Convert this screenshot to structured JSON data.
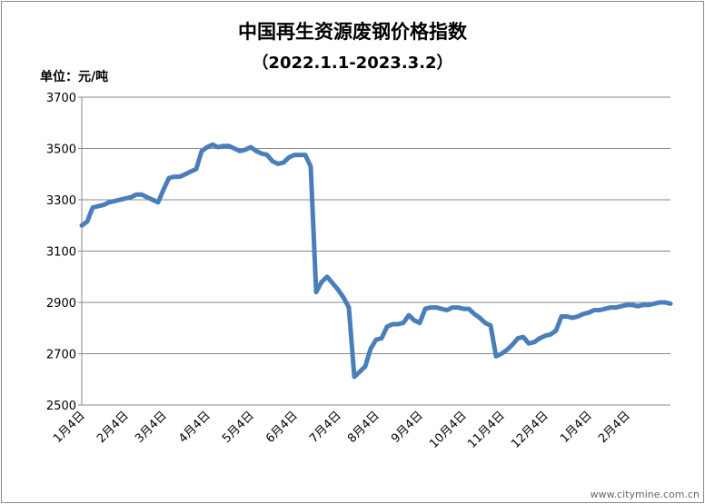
{
  "chart_data": {
    "type": "line",
    "title": "中国再生资源废钢价格指数",
    "subtitle": "（2022.1.1-2023.3.2）",
    "unit_label": "单位：元/吨",
    "watermark": "www.citymine.com.cn",
    "color": "#4a7ebb",
    "grid": true,
    "ylim": [
      2500,
      3700
    ],
    "yticks": [
      2500,
      2700,
      2900,
      3100,
      3300,
      3500,
      3700
    ],
    "categories": [
      "1月4日",
      null,
      null,
      null,
      null,
      null,
      null,
      null,
      "2月4日",
      null,
      null,
      null,
      null,
      null,
      null,
      "3月4日",
      null,
      null,
      null,
      null,
      null,
      null,
      null,
      "4月4日",
      null,
      null,
      null,
      null,
      null,
      null,
      null,
      "5月4日",
      null,
      null,
      null,
      null,
      null,
      null,
      null,
      "6月4日",
      null,
      null,
      null,
      null,
      null,
      null,
      null,
      "7月4日",
      null,
      null,
      null,
      null,
      null,
      null,
      "8月4日",
      null,
      null,
      null,
      null,
      null,
      null,
      null,
      "9月4日",
      null,
      null,
      null,
      null,
      null,
      null,
      null,
      "10月4日",
      null,
      null,
      null,
      null,
      null,
      null,
      "11月4日",
      null,
      null,
      null,
      null,
      null,
      null,
      null,
      "12月4日",
      null,
      null,
      null,
      null,
      null,
      null,
      null,
      "1月4日",
      null,
      null,
      null,
      null,
      null,
      null,
      "2月4日",
      null,
      null,
      null,
      null,
      null,
      null,
      null,
      null
    ],
    "values": [
      3200,
      3215,
      3270,
      3275,
      3280,
      3290,
      3295,
      3300,
      3305,
      3310,
      3320,
      3320,
      3310,
      3300,
      3290,
      3340,
      3385,
      3390,
      3390,
      3400,
      3410,
      3420,
      3490,
      3505,
      3515,
      3505,
      3510,
      3510,
      3500,
      3490,
      3495,
      3505,
      3490,
      3480,
      3475,
      3450,
      3440,
      3445,
      3465,
      3475,
      3475,
      3475,
      3430,
      2940,
      2980,
      3000,
      2975,
      2950,
      2920,
      2880,
      2610,
      2630,
      2650,
      2720,
      2755,
      2760,
      2805,
      2815,
      2815,
      2820,
      2850,
      2830,
      2820,
      2875,
      2880,
      2880,
      2875,
      2870,
      2880,
      2880,
      2875,
      2875,
      2855,
      2840,
      2820,
      2810,
      2690,
      2700,
      2715,
      2735,
      2760,
      2765,
      2740,
      2745,
      2760,
      2770,
      2775,
      2790,
      2845,
      2845,
      2840,
      2845,
      2855,
      2860,
      2870,
      2870,
      2875,
      2880,
      2880,
      2885,
      2890,
      2890,
      2885,
      2890,
      2890,
      2895,
      2900,
      2900,
      2895
    ]
  }
}
